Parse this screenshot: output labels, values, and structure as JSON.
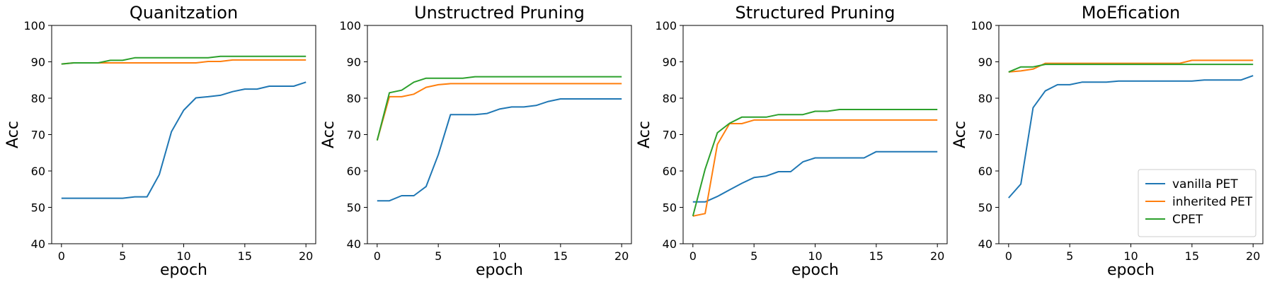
{
  "legend": {
    "placement": "lower-right",
    "panel": 3,
    "entries": [
      "vanilla PET",
      "inherited PET",
      "CPET"
    ]
  },
  "colors": {
    "vanilla PET": "#1f77b4",
    "inherited PET": "#ff7f0e",
    "CPET": "#2ca02c"
  },
  "chart_data": [
    {
      "type": "line",
      "title": "Quanitzation",
      "xlabel": "epoch",
      "ylabel": "Acc",
      "xlim": [
        -0.8,
        20.8
      ],
      "ylim": [
        40,
        100
      ],
      "xticks": [
        0,
        5,
        10,
        15,
        20
      ],
      "yticks": [
        40,
        50,
        60,
        70,
        80,
        90,
        100
      ],
      "grid": false,
      "x": [
        0,
        1,
        2,
        3,
        4,
        5,
        6,
        7,
        8,
        9,
        10,
        11,
        12,
        13,
        14,
        15,
        16,
        17,
        18,
        19,
        20
      ],
      "series": [
        {
          "name": "vanilla PET",
          "values": [
            52.5,
            52.5,
            52.5,
            52.5,
            52.5,
            52.5,
            52.9,
            52.9,
            59.0,
            70.8,
            76.7,
            80.1,
            80.4,
            80.8,
            81.8,
            82.5,
            82.5,
            83.3,
            83.3,
            83.3,
            84.4
          ]
        },
        {
          "name": "inherited PET",
          "values": [
            89.4,
            89.7,
            89.7,
            89.7,
            89.7,
            89.7,
            89.7,
            89.7,
            89.7,
            89.7,
            89.7,
            89.7,
            90.1,
            90.1,
            90.5,
            90.5,
            90.5,
            90.5,
            90.5,
            90.5,
            90.5
          ]
        },
        {
          "name": "CPET",
          "values": [
            89.4,
            89.7,
            89.7,
            89.7,
            90.4,
            90.4,
            91.1,
            91.1,
            91.1,
            91.1,
            91.1,
            91.1,
            91.1,
            91.5,
            91.5,
            91.5,
            91.5,
            91.5,
            91.5,
            91.5,
            91.5
          ]
        }
      ]
    },
    {
      "type": "line",
      "title": "Unstructred Pruning",
      "xlabel": "epoch",
      "ylabel": "Acc",
      "xlim": [
        -0.8,
        20.8
      ],
      "ylim": [
        40,
        100
      ],
      "xticks": [
        0,
        5,
        10,
        15,
        20
      ],
      "yticks": [
        40,
        50,
        60,
        70,
        80,
        90,
        100
      ],
      "grid": false,
      "x": [
        0,
        1,
        2,
        3,
        4,
        5,
        6,
        7,
        8,
        9,
        10,
        11,
        12,
        13,
        14,
        15,
        16,
        17,
        18,
        19,
        20
      ],
      "series": [
        {
          "name": "vanilla PET",
          "values": [
            51.8,
            51.8,
            53.2,
            53.2,
            55.7,
            64.5,
            75.5,
            75.5,
            75.5,
            75.8,
            77.0,
            77.6,
            77.6,
            78.0,
            79.1,
            79.8,
            79.8,
            79.8,
            79.8,
            79.8,
            79.8
          ]
        },
        {
          "name": "inherited PET",
          "values": [
            68.4,
            80.4,
            80.4,
            81.1,
            83.0,
            83.7,
            84.0,
            84.0,
            84.0,
            84.0,
            84.0,
            84.0,
            84.0,
            84.0,
            84.0,
            84.0,
            84.0,
            84.0,
            84.0,
            84.0,
            84.0
          ]
        },
        {
          "name": "CPET",
          "values": [
            68.4,
            81.5,
            82.2,
            84.4,
            85.5,
            85.5,
            85.5,
            85.5,
            85.9,
            85.9,
            85.9,
            85.9,
            85.9,
            85.9,
            85.9,
            85.9,
            85.9,
            85.9,
            85.9,
            85.9,
            85.9
          ]
        }
      ]
    },
    {
      "type": "line",
      "title": "Structured Pruning",
      "xlabel": "epoch",
      "ylabel": "Acc",
      "xlim": [
        -0.8,
        20.8
      ],
      "ylim": [
        40,
        100
      ],
      "xticks": [
        0,
        5,
        10,
        15,
        20
      ],
      "yticks": [
        40,
        50,
        60,
        70,
        80,
        90,
        100
      ],
      "grid": false,
      "x": [
        0,
        1,
        2,
        3,
        4,
        5,
        6,
        7,
        8,
        9,
        10,
        11,
        12,
        13,
        14,
        15,
        16,
        17,
        18,
        19,
        20
      ],
      "series": [
        {
          "name": "vanilla PET",
          "values": [
            51.5,
            51.5,
            53.0,
            54.8,
            56.6,
            58.2,
            58.6,
            59.8,
            59.8,
            62.5,
            63.6,
            63.6,
            63.6,
            63.6,
            63.6,
            65.3,
            65.3,
            65.3,
            65.3,
            65.3,
            65.3
          ]
        },
        {
          "name": "inherited PET",
          "values": [
            47.6,
            48.3,
            67.3,
            73.0,
            73.0,
            74.0,
            74.0,
            74.0,
            74.0,
            74.0,
            74.0,
            74.0,
            74.0,
            74.0,
            74.0,
            74.0,
            74.0,
            74.0,
            74.0,
            74.0,
            74.0
          ]
        },
        {
          "name": "CPET",
          "values": [
            47.6,
            60.5,
            70.5,
            73.1,
            74.8,
            74.8,
            74.8,
            75.5,
            75.5,
            75.5,
            76.4,
            76.4,
            76.9,
            76.9,
            76.9,
            76.9,
            76.9,
            76.9,
            76.9,
            76.9,
            76.9
          ]
        }
      ]
    },
    {
      "type": "line",
      "title": "MoEfication",
      "xlabel": "epoch",
      "ylabel": "Acc",
      "xlim": [
        -0.8,
        20.8
      ],
      "ylim": [
        40,
        100
      ],
      "xticks": [
        0,
        5,
        10,
        15,
        20
      ],
      "yticks": [
        40,
        50,
        60,
        70,
        80,
        90,
        100
      ],
      "grid": false,
      "x": [
        0,
        1,
        2,
        3,
        4,
        5,
        6,
        7,
        8,
        9,
        10,
        11,
        12,
        13,
        14,
        15,
        16,
        17,
        18,
        19,
        20
      ],
      "series": [
        {
          "name": "vanilla PET",
          "values": [
            52.6,
            56.4,
            77.4,
            82.0,
            83.7,
            83.7,
            84.4,
            84.4,
            84.4,
            84.7,
            84.7,
            84.7,
            84.7,
            84.7,
            84.7,
            84.7,
            85.0,
            85.0,
            85.0,
            85.0,
            86.2
          ]
        },
        {
          "name": "inherited PET",
          "values": [
            87.2,
            87.5,
            88.0,
            89.6,
            89.6,
            89.6,
            89.6,
            89.6,
            89.6,
            89.6,
            89.6,
            89.6,
            89.6,
            89.6,
            89.6,
            90.4,
            90.4,
            90.4,
            90.4,
            90.4,
            90.4
          ]
        },
        {
          "name": "CPET",
          "values": [
            87.2,
            88.6,
            88.6,
            89.3,
            89.3,
            89.3,
            89.3,
            89.3,
            89.3,
            89.3,
            89.3,
            89.3,
            89.3,
            89.3,
            89.3,
            89.3,
            89.3,
            89.3,
            89.3,
            89.3,
            89.3
          ]
        }
      ]
    }
  ]
}
